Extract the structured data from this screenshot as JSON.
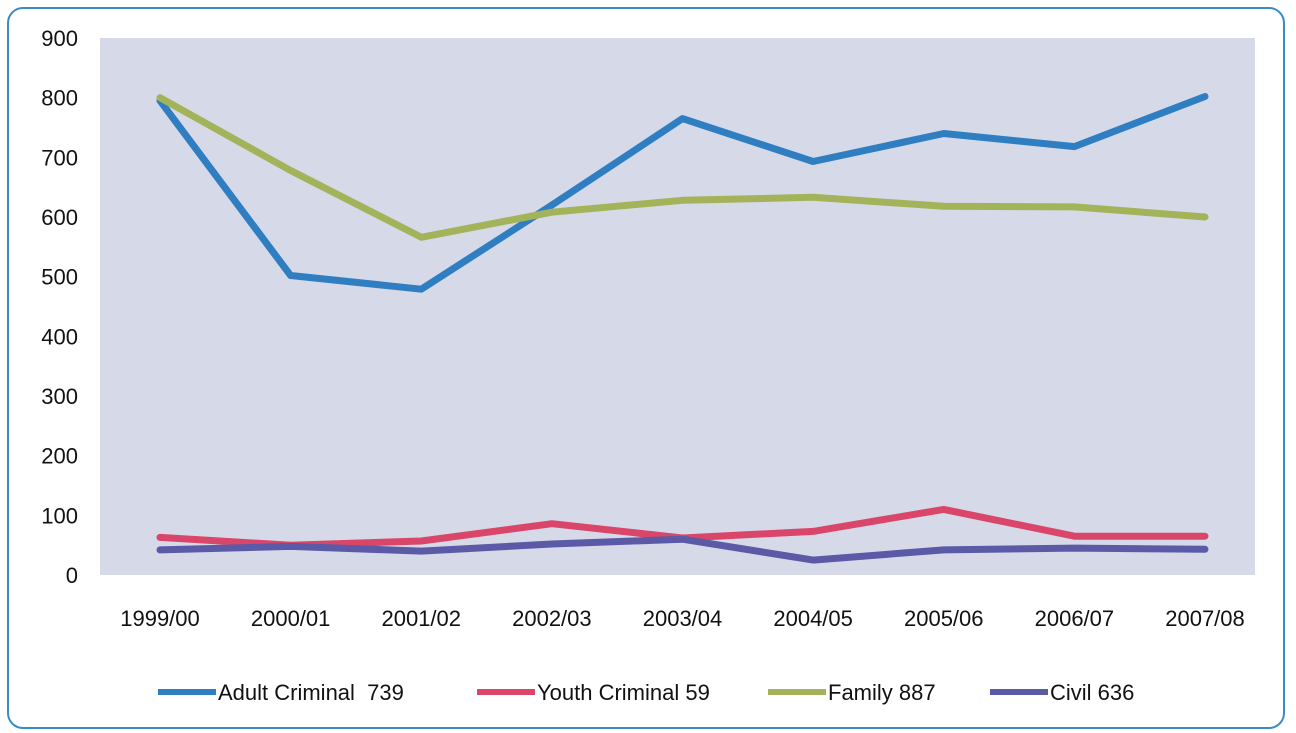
{
  "chart_data": {
    "type": "line",
    "title": "",
    "xlabel": "",
    "ylabel": "",
    "categories": [
      "1999/00",
      "2000/01",
      "2001/02",
      "2002/03",
      "2003/04",
      "2004/05",
      "2005/06",
      "2006/07",
      "2007/08"
    ],
    "ylim": [
      0,
      900
    ],
    "yticks": [
      0,
      100,
      200,
      300,
      400,
      500,
      600,
      700,
      800,
      900
    ],
    "grid": false,
    "legend_position": "bottom",
    "series": [
      {
        "name": "Adult Criminal  739",
        "color": "#2f7ec2",
        "values": [
          795,
          502,
          479,
          620,
          765,
          693,
          740,
          718,
          802
        ]
      },
      {
        "name": "Youth Criminal 59",
        "color": "#d9466a",
        "values": [
          63,
          50,
          57,
          86,
          62,
          73,
          110,
          65,
          65
        ]
      },
      {
        "name": "Family 887",
        "color": "#a3b35a",
        "values": [
          800,
          678,
          566,
          608,
          628,
          633,
          618,
          617,
          600
        ]
      },
      {
        "name": "Civil 636",
        "color": "#5b5aa6",
        "values": [
          42,
          48,
          40,
          52,
          60,
          25,
          42,
          45,
          43
        ]
      }
    ],
    "plot_background": "#d6d9e8"
  }
}
